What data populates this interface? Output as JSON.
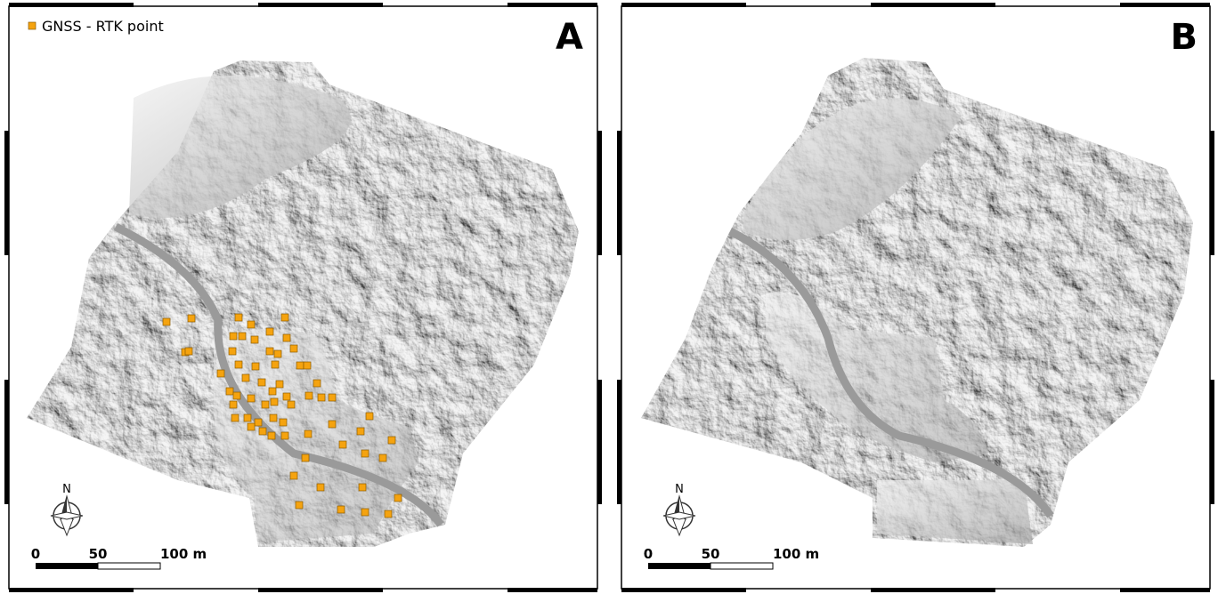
{
  "panels": [
    {
      "label": "A",
      "legend": "GNSS - RTK point",
      "north": "N",
      "scale": [
        "0",
        "50",
        "100 m"
      ]
    },
    {
      "label": "B",
      "north": "N",
      "scale": [
        "0",
        "50",
        "100 m"
      ]
    }
  ]
}
